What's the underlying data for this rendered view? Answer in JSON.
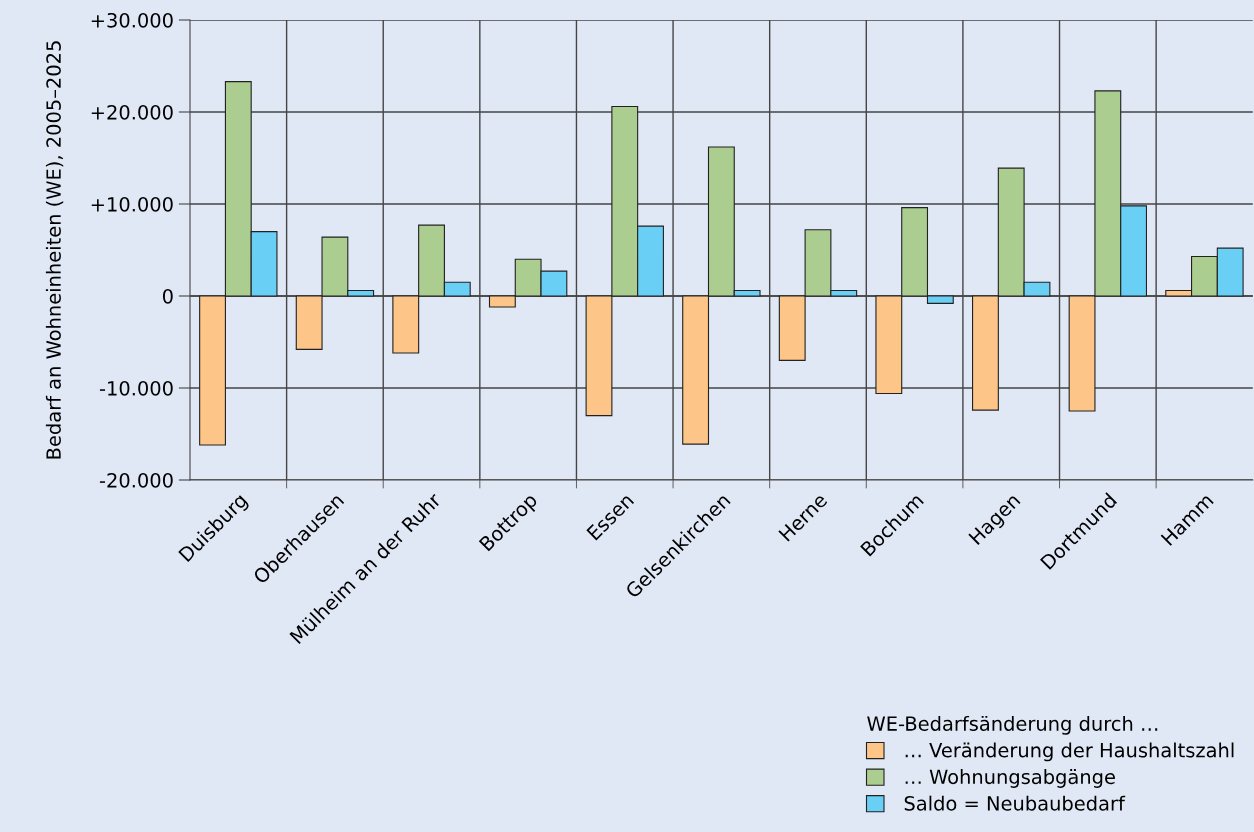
{
  "chart_data": {
    "type": "bar",
    "ylabel": "Bedarf an Wohneinheiten (WE), 2005–2025",
    "categories": [
      "Duisburg",
      "Oberhausen",
      "Mülheim an der Ruhr",
      "Bottrop",
      "Essen",
      "Gelsenkirchen",
      "Herne",
      "Bochum",
      "Hagen",
      "Dortmund",
      "Hamm"
    ],
    "series": [
      {
        "name": "… Veränderung der Haushaltszahl",
        "color": "#fdc688",
        "values": [
          -16200,
          -5800,
          -6200,
          -1200,
          -13000,
          -16100,
          -7000,
          -10600,
          -12400,
          -12500,
          600
        ]
      },
      {
        "name": "… Wohnungsabgänge",
        "color": "#abcd8f",
        "values": [
          23300,
          6400,
          7700,
          4000,
          20600,
          16200,
          7200,
          9600,
          13900,
          22300,
          4300
        ]
      },
      {
        "name": "Saldo = Neubaubedarf",
        "color": "#69cff4",
        "values": [
          7000,
          600,
          1500,
          2700,
          7600,
          600,
          600,
          -800,
          1500,
          9800,
          5200
        ]
      }
    ],
    "legend_title": "WE-Bedarfsänderung durch …",
    "ylim": [
      -20000,
      30000
    ],
    "yticks": [
      {
        "value": -20000,
        "label": "-20.000"
      },
      {
        "value": -10000,
        "label": "-10.000"
      },
      0,
      {
        "value": 10000,
        "label": "+10.000"
      },
      {
        "value": 20000,
        "label": "+20.000"
      },
      {
        "value": 30000,
        "label": "+30.000"
      }
    ],
    "grid": true,
    "legend": "bottom right"
  }
}
